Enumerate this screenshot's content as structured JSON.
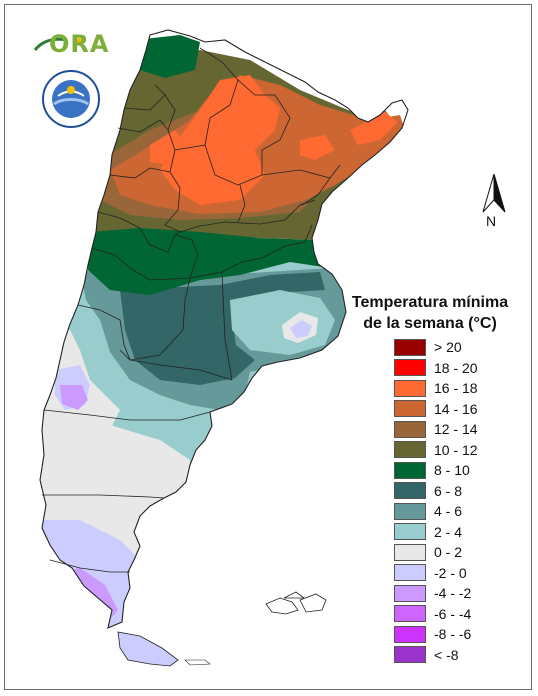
{
  "logo": {
    "text": "ORA"
  },
  "legend": {
    "title_line1": "Temperatura mínima",
    "title_line2": "de la semana (°C)",
    "items": [
      {
        "label": "> 20",
        "color": "#990000"
      },
      {
        "label": "18 - 20",
        "color": "#ff0000"
      },
      {
        "label": "16 - 18",
        "color": "#ff6a32"
      },
      {
        "label": "14 - 16",
        "color": "#cc6633"
      },
      {
        "label": "12 - 14",
        "color": "#99663a"
      },
      {
        "label": "10 - 12",
        "color": "#666633"
      },
      {
        "label": "8 - 10",
        "color": "#006633"
      },
      {
        "label": "6 - 8",
        "color": "#336666"
      },
      {
        "label": "4 - 6",
        "color": "#669999"
      },
      {
        "label": "2 - 4",
        "color": "#99cccc"
      },
      {
        "label": "0 - 2",
        "color": "#e8e8e8"
      },
      {
        "label": "-2 - 0",
        "color": "#ccccff"
      },
      {
        "label": "-4 - -2",
        "color": "#cc99ff"
      },
      {
        "label": "-6 - -4",
        "color": "#cc66ff"
      },
      {
        "label": "-8 - -6",
        "color": "#cc33ff"
      },
      {
        "label": "< -8",
        "color": "#9933cc"
      }
    ]
  },
  "north_arrow": {
    "label": "N"
  },
  "map_layers": {
    "bands": [
      "16 - 18",
      "14 - 16",
      "12 - 14",
      "10 - 12",
      "8 - 10",
      "6 - 8",
      "4 - 6",
      "2 - 4",
      "0 - 2",
      "-2 - 0",
      "-4 - -2"
    ]
  }
}
